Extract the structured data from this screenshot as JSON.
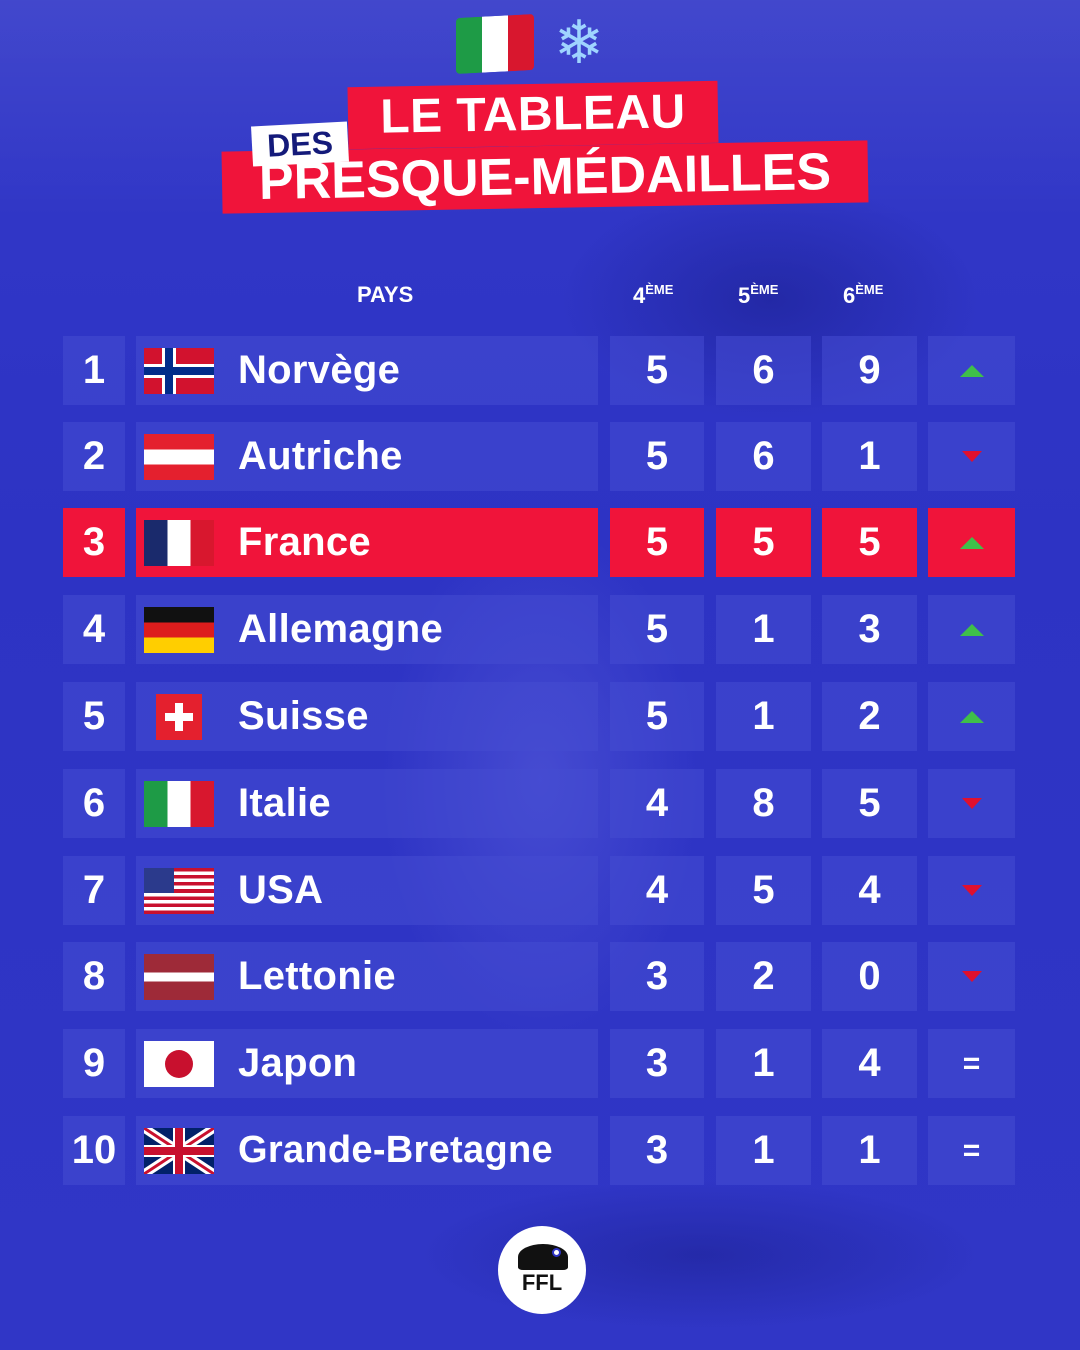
{
  "header": {
    "line1": "LE TABLEAU",
    "line_des": "DES",
    "line2": "PRESQUE-MÉDAILLES",
    "snow_glyph": "❄"
  },
  "columns": {
    "pays": "PAYS",
    "col4": "4",
    "col4_sup": "ÈME",
    "col5": "5",
    "col5_sup": "ÈME",
    "col6": "6",
    "col6_sup": "ÈME"
  },
  "rows": [
    {
      "rank": "1",
      "country": "Norvège",
      "flag": "flag-norway",
      "v4": "5",
      "v5": "6",
      "v6": "9",
      "trend": "up"
    },
    {
      "rank": "2",
      "country": "Autriche",
      "flag": "flag-austria",
      "v4": "5",
      "v5": "6",
      "v6": "1",
      "trend": "down"
    },
    {
      "rank": "3",
      "country": "France",
      "flag": "flag-france",
      "v4": "5",
      "v5": "5",
      "v6": "5",
      "trend": "up",
      "highlight": true
    },
    {
      "rank": "4",
      "country": "Allemagne",
      "flag": "flag-germany",
      "v4": "5",
      "v5": "1",
      "v6": "3",
      "trend": "up"
    },
    {
      "rank": "5",
      "country": "Suisse",
      "flag": "flag-switzerland",
      "v4": "5",
      "v5": "1",
      "v6": "2",
      "trend": "up"
    },
    {
      "rank": "6",
      "country": "Italie",
      "flag": "flag-italy",
      "v4": "4",
      "v5": "8",
      "v6": "5",
      "trend": "down"
    },
    {
      "rank": "7",
      "country": "USA",
      "flag": "flag-usa",
      "v4": "4",
      "v5": "5",
      "v6": "4",
      "trend": "down"
    },
    {
      "rank": "8",
      "country": "Lettonie",
      "flag": "flag-latvia",
      "v4": "3",
      "v5": "2",
      "v6": "0",
      "trend": "down"
    },
    {
      "rank": "9",
      "country": "Japon",
      "flag": "flag-japan",
      "v4": "3",
      "v5": "1",
      "v6": "4",
      "trend": "="
    },
    {
      "rank": "10",
      "country": "Grande-Bretagne",
      "flag": "flag-uk",
      "v4": "3",
      "v5": "1",
      "v6": "1",
      "trend": "="
    }
  ],
  "logo": {
    "text": "FFL"
  },
  "colors": {
    "background": "#2d33c4",
    "accent_red": "#f0143a",
    "up_green": "#3fbf4a",
    "down_red": "#e0102e"
  }
}
